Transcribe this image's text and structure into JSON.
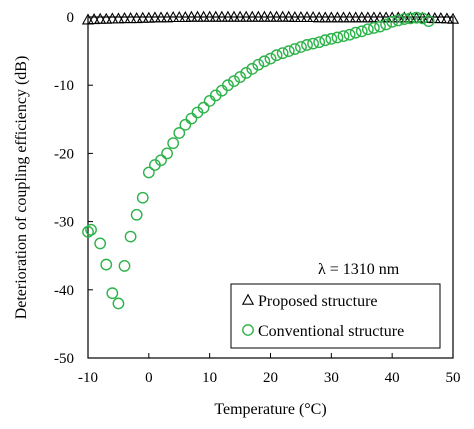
{
  "chart_data": {
    "type": "scatter",
    "title": "",
    "xlabel": "Temperature (°C)",
    "ylabel": "Deterioration of coupling efficiency (dB)",
    "xlim": [
      -10,
      50
    ],
    "ylim": [
      -50,
      0
    ],
    "xticks": [
      -10,
      0,
      10,
      20,
      30,
      40,
      50
    ],
    "yticks": [
      0,
      -10,
      -20,
      -30,
      -40,
      -50
    ],
    "xtick_labels": [
      "-10",
      "0",
      "10",
      "20",
      "30",
      "40",
      "50"
    ],
    "ytick_labels": [
      "0",
      "-10",
      "-20",
      "-30",
      "-40",
      "-50"
    ],
    "grid": false,
    "legend_position": "bottom-right",
    "annotation": "λ = 1310 nm",
    "series": [
      {
        "name": "Proposed structure",
        "marker": "triangle",
        "color": "#000000",
        "x": [
          -10,
          -9,
          -8,
          -7,
          -6,
          -5,
          -4,
          -3,
          -2,
          -1,
          0,
          1,
          2,
          3,
          4,
          5,
          6,
          7,
          8,
          9,
          10,
          11,
          12,
          13,
          14,
          15,
          16,
          17,
          18,
          19,
          20,
          21,
          22,
          23,
          24,
          25,
          26,
          27,
          28,
          29,
          30,
          31,
          32,
          33,
          34,
          35,
          36,
          37,
          38,
          39,
          40,
          41,
          42,
          43,
          44,
          45,
          46,
          47,
          48,
          49,
          50
        ],
        "y": [
          -0.4,
          -0.35,
          -0.3,
          -0.3,
          -0.25,
          -0.25,
          -0.2,
          -0.2,
          -0.2,
          -0.15,
          -0.15,
          -0.1,
          -0.1,
          -0.1,
          -0.05,
          -0.05,
          -0.05,
          0,
          0,
          0,
          0,
          0,
          0,
          0,
          0,
          0,
          0,
          0,
          0,
          0,
          0,
          0,
          0,
          0,
          -0.05,
          -0.05,
          -0.05,
          -0.05,
          -0.1,
          -0.1,
          -0.1,
          -0.1,
          -0.1,
          -0.1,
          -0.1,
          -0.1,
          -0.1,
          -0.1,
          -0.1,
          -0.1,
          -0.1,
          -0.1,
          -0.1,
          -0.1,
          -0.15,
          -0.15,
          -0.15,
          -0.2,
          -0.2,
          -0.25,
          -0.3
        ]
      },
      {
        "name": "Conventional structure",
        "marker": "circle",
        "color": "#2db34a",
        "x": [
          -10,
          -9.5,
          -8,
          -7,
          -6,
          -5,
          -4,
          -3,
          -2,
          -1,
          0,
          1,
          2,
          3,
          4,
          5,
          6,
          7,
          8,
          9,
          10,
          11,
          12,
          13,
          14,
          15,
          16,
          17,
          18,
          19,
          20,
          21,
          22,
          23,
          24,
          25,
          26,
          27,
          28,
          29,
          30,
          31,
          32,
          33,
          34,
          35,
          36,
          37,
          38,
          39,
          40,
          41,
          42,
          43,
          44,
          45,
          46
        ],
        "y": [
          -31.5,
          -31.2,
          -33.2,
          -36.3,
          -40.5,
          -42,
          -36.5,
          -32.2,
          -29,
          -26.5,
          -22.8,
          -21.7,
          -21,
          -20,
          -18.5,
          -17,
          -15.8,
          -14.9,
          -14,
          -13.3,
          -12.3,
          -11.5,
          -10.8,
          -10,
          -9.4,
          -8.8,
          -8.2,
          -7.6,
          -7,
          -6.5,
          -6.1,
          -5.6,
          -5.3,
          -5,
          -4.7,
          -4.4,
          -4.1,
          -3.9,
          -3.7,
          -3.4,
          -3.2,
          -3,
          -2.8,
          -2.6,
          -2.3,
          -2.1,
          -1.8,
          -1.6,
          -1.4,
          -1.1,
          -0.7,
          -0.5,
          -0.3,
          -0.2,
          -0.1,
          -0.2,
          -0.6
        ]
      }
    ]
  }
}
